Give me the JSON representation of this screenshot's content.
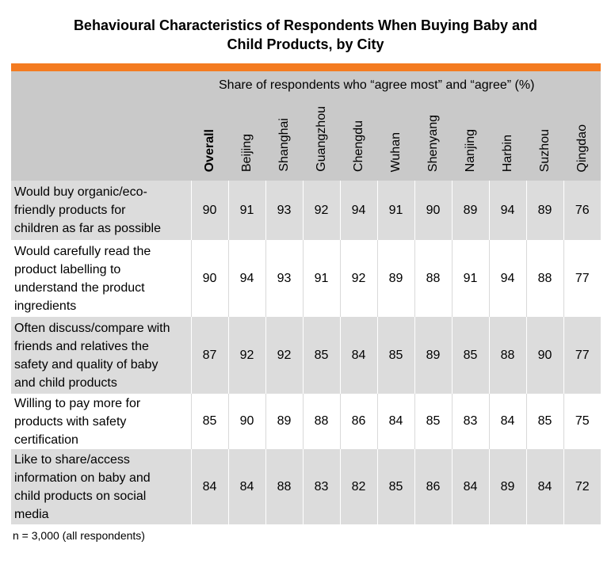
{
  "header": {
    "title_line1": "Behavioural Characteristics of Respondents When Buying Baby and",
    "title_line2": "Child Products, by City",
    "subtitle": "Share of respondents who “agree most” and “agree” (%)"
  },
  "colors": {
    "accent": "#f47b20",
    "header_bg": "#c9c9c9",
    "row_shade": "#dcdcdc"
  },
  "chart_data": {
    "type": "table",
    "title": "Behavioural Characteristics of Respondents When Buying Baby and Child Products, by City",
    "unit": "%",
    "columns": [
      "Overall",
      "Beijing",
      "Shanghai",
      "Guangzhou",
      "Chengdu",
      "Wuhan",
      "Shenyang",
      "Nanjing",
      "Harbin",
      "Suzhou",
      "Qingdao"
    ],
    "rows": [
      {
        "label_lines": [
          "Would buy organic/eco-",
          "friendly products for",
          "children as far as possible"
        ],
        "values": [
          90,
          91,
          93,
          92,
          94,
          91,
          90,
          89,
          94,
          89,
          76
        ]
      },
      {
        "label_lines": [
          "Would carefully read the",
          "product labelling to",
          "understand the product",
          "ingredients"
        ],
        "values": [
          90,
          94,
          93,
          91,
          92,
          89,
          88,
          91,
          94,
          88,
          77
        ]
      },
      {
        "label_lines": [
          "Often discuss/compare with",
          "friends and relatives the",
          "safety and quality of baby",
          "and child products"
        ],
        "values": [
          87,
          92,
          92,
          85,
          84,
          85,
          89,
          85,
          88,
          90,
          77
        ]
      },
      {
        "label_lines": [
          "Willing to pay more for",
          "products with safety",
          "certification"
        ],
        "values": [
          85,
          90,
          89,
          88,
          86,
          84,
          85,
          83,
          84,
          85,
          75
        ]
      },
      {
        "label_lines": [
          "Like to share/access",
          "information on baby and",
          "child products on social",
          "media"
        ],
        "values": [
          84,
          84,
          88,
          83,
          82,
          85,
          86,
          84,
          89,
          84,
          72
        ]
      }
    ],
    "note": "n = 3,000 (all respondents)"
  }
}
